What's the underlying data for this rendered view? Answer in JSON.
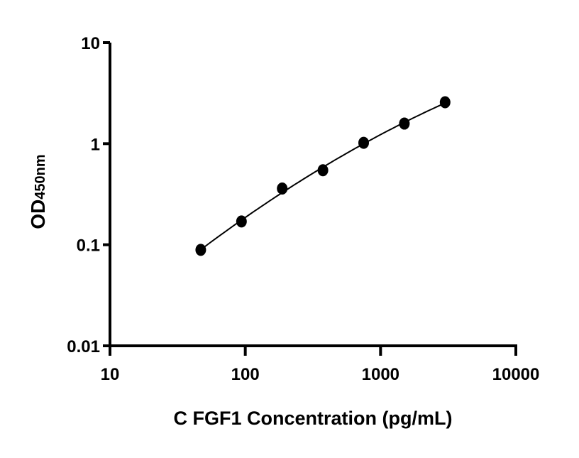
{
  "chart_data": {
    "type": "scatter",
    "title": "",
    "xlabel": "C FGF1 Concentration (pg/mL)",
    "ylabel_main": "OD",
    "ylabel_sub": "450nm",
    "xscale": "log",
    "yscale": "log",
    "xlim": [
      10,
      10000
    ],
    "ylim": [
      0.01,
      10
    ],
    "xticks": [
      "10",
      "100",
      "1000",
      "10000"
    ],
    "yticks": [
      "0.01",
      "0.1",
      "1",
      "10"
    ],
    "grid": false,
    "fit_curve": true,
    "color": "#000000",
    "x": [
      46.875,
      93.75,
      187.5,
      375,
      750,
      1500,
      3000
    ],
    "y": [
      0.089,
      0.17,
      0.36,
      0.546,
      1.02,
      1.58,
      2.57
    ]
  }
}
